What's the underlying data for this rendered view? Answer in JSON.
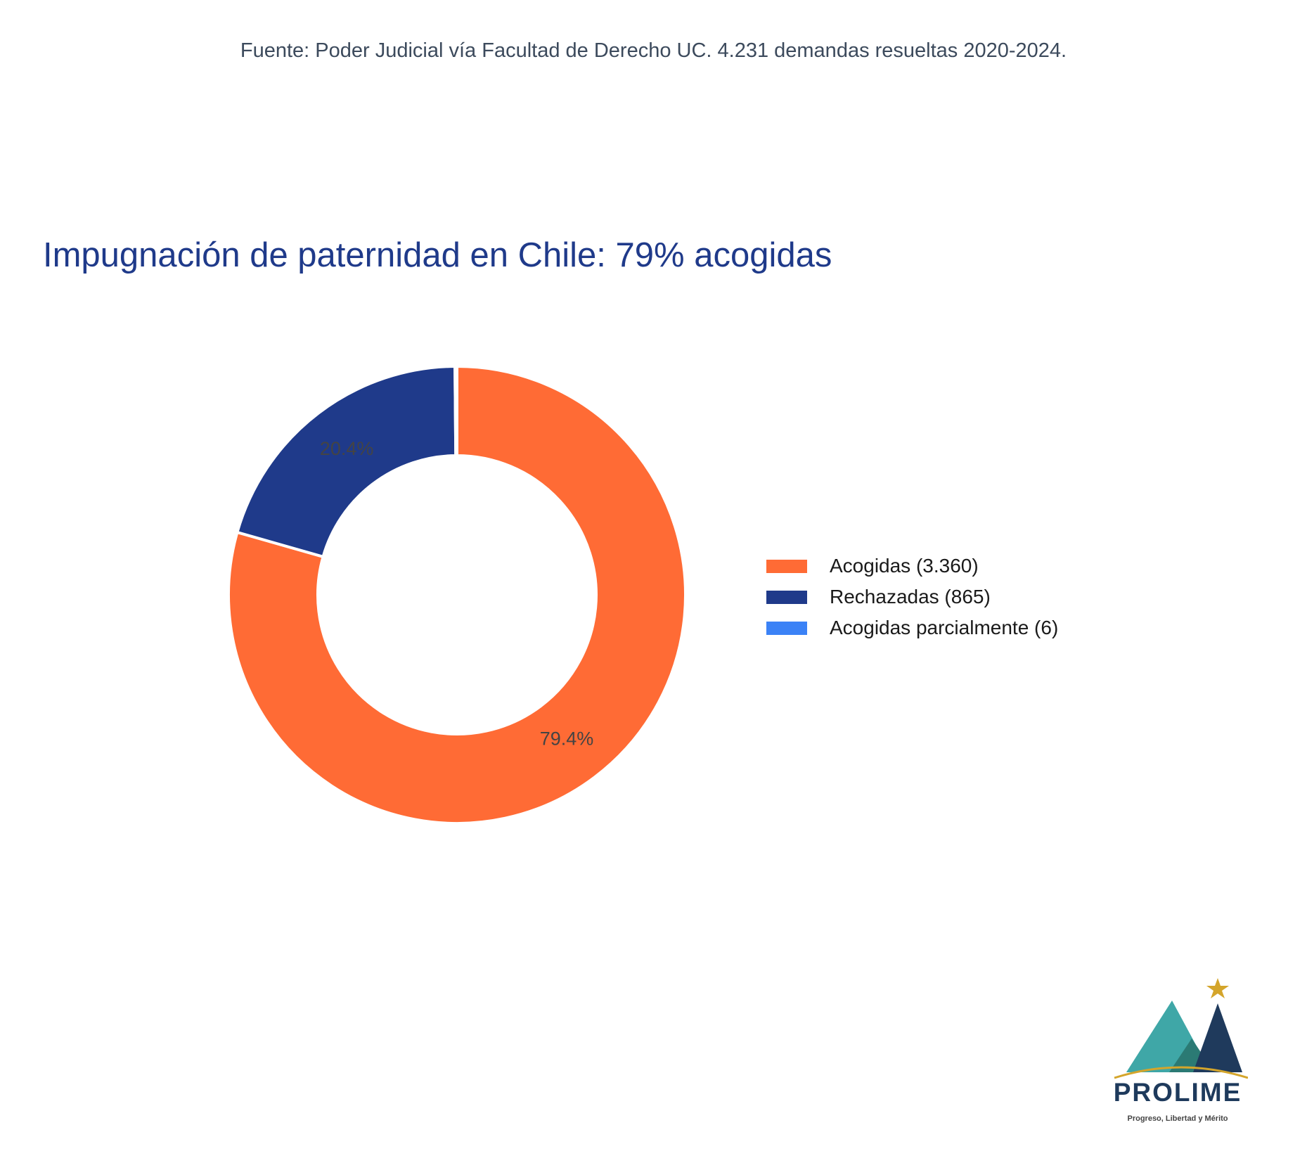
{
  "source_note": "Fuente: Poder Judicial vía Facultad de Derecho UC. 4.231 demandas resueltas 2020-2024.",
  "chart_data": {
    "type": "pie",
    "title": "Impugnación de paternidad en Chile: 79% acogidas",
    "hole": true,
    "legend_position": "right",
    "slices": [
      {
        "label": "Acogidas (3.360)",
        "value": 3360,
        "percent_label": "79.4%",
        "color": "#FF6B35"
      },
      {
        "label": "Rechazadas (865)",
        "value": 865,
        "percent_label": "20.4%",
        "color": "#1F3A8A"
      },
      {
        "label": "Acogidas parcialmente (6)",
        "value": 6,
        "percent_label": "",
        "color": "#3B82F6"
      }
    ]
  },
  "logo": {
    "name": "PROLIME",
    "tagline": "Progreso, Libertad y Mérito",
    "colors": {
      "teal": "#3FA7A7",
      "navy": "#1F3A5C",
      "gold": "#D4A52B"
    }
  }
}
